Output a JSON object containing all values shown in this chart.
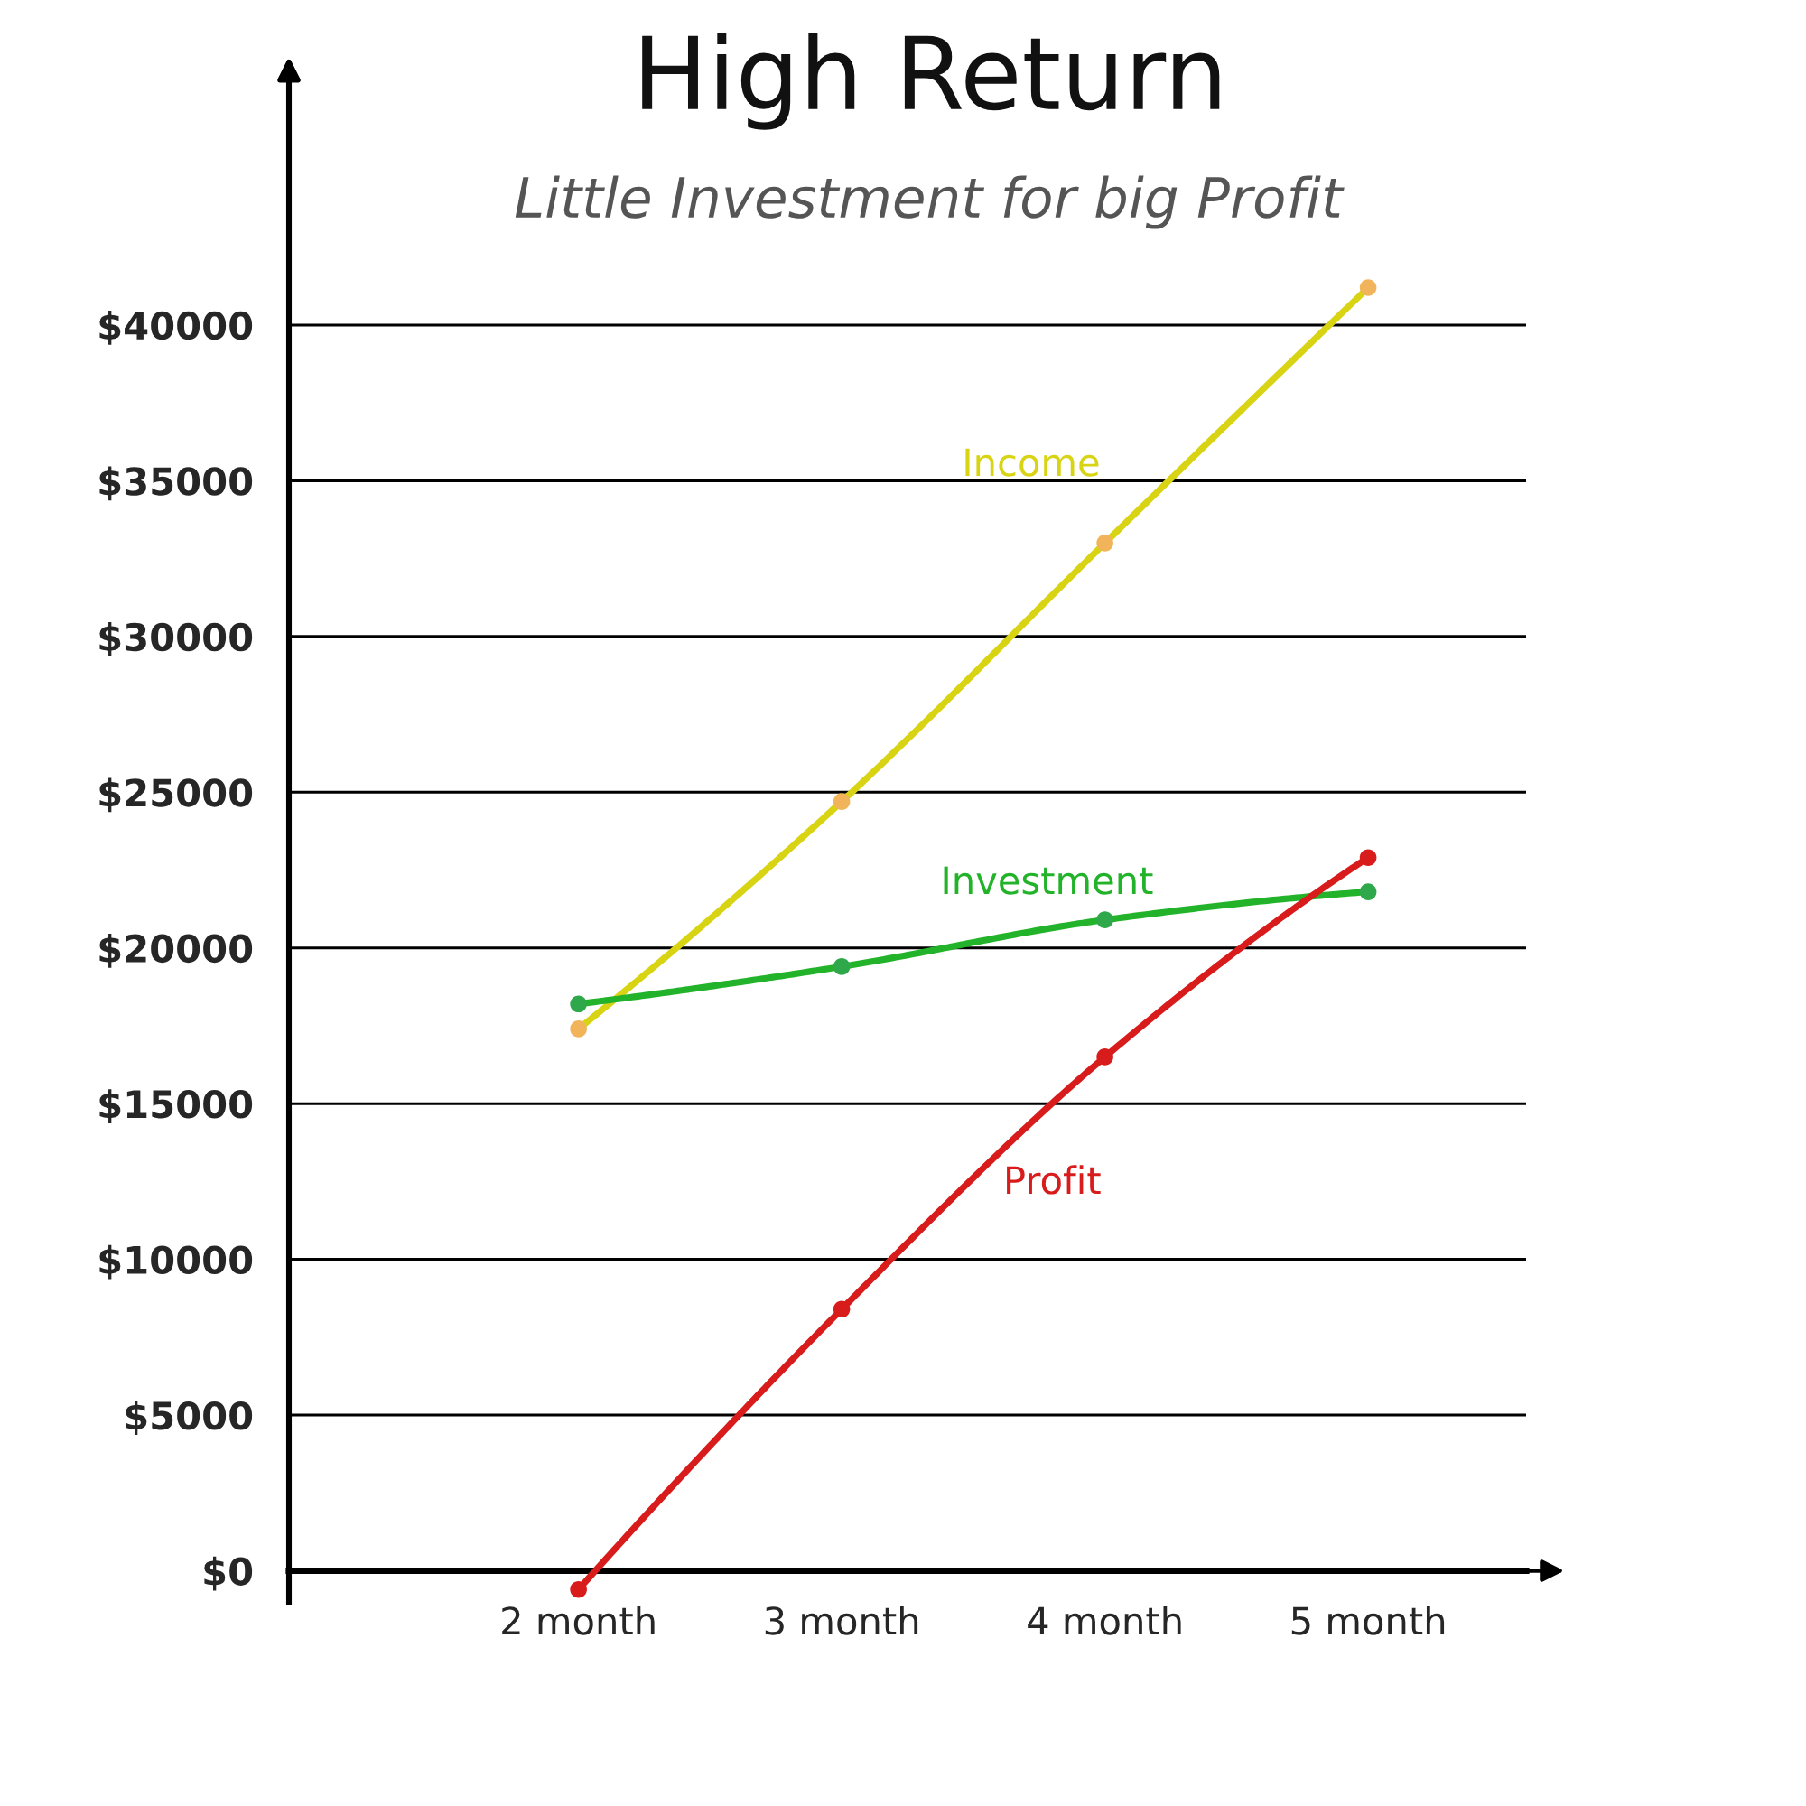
{
  "chart_data": {
    "type": "line",
    "title": "High Return",
    "subtitle": "Little Investment for big Profit",
    "categories": [
      "2 month",
      "3 month",
      "4 month",
      "5 month"
    ],
    "series": [
      {
        "name": "Income",
        "color": "#d8d414",
        "colors": [
          "#f2b45a",
          "#f2b45a",
          "#f2b45a",
          "#f2b45a"
        ],
        "values": [
          17400,
          24700,
          33000,
          41200
        ]
      },
      {
        "name": "Investment",
        "color": "#22b32a",
        "colors": [
          "#2ea84a",
          "#2ea84a",
          "#2ea84a",
          "#2ea84a"
        ],
        "values": [
          18200,
          19400,
          20900,
          21800
        ]
      },
      {
        "name": "Profit",
        "color": "#d81c1c",
        "values": [
          -600,
          8400,
          16500,
          22900
        ]
      }
    ],
    "ylim": [
      -1000,
      48000
    ],
    "yticks": [
      {
        "value": 0,
        "label": "$0"
      },
      {
        "value": 5000,
        "label": "$5000"
      },
      {
        "value": 10000,
        "label": "$10000"
      },
      {
        "value": 15000,
        "label": "$15000"
      },
      {
        "value": 20000,
        "label": "$20000"
      },
      {
        "value": 25000,
        "label": "$25000"
      },
      {
        "value": 30000,
        "label": "$30000"
      },
      {
        "value": 35000,
        "label": "$35000"
      },
      {
        "value": 40000,
        "label": "$40000"
      }
    ],
    "grid": "y",
    "marker": "circle"
  }
}
